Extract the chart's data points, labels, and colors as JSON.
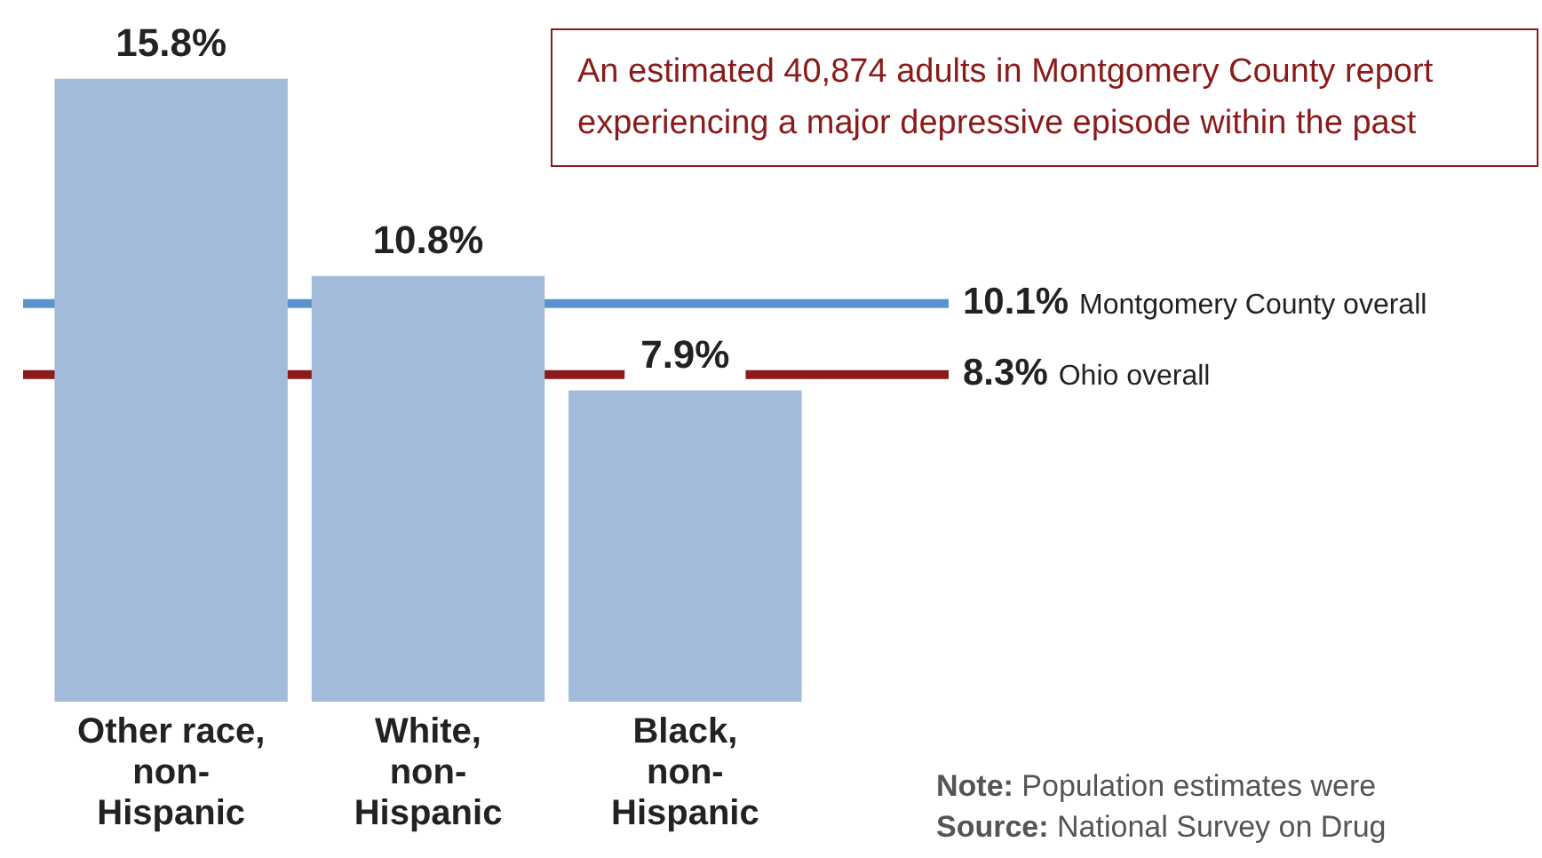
{
  "chart_data": {
    "type": "bar",
    "categories": [
      "Other race, non-Hispanic",
      "White, non-Hispanic",
      "Black, non-Hispanic"
    ],
    "values": [
      15.8,
      10.8,
      7.9
    ],
    "color": "#a3bbdb",
    "value_labels": [
      "15.8%",
      "10.8%",
      "7.9%"
    ],
    "ref_lines": [
      {
        "axis": "y",
        "value": 10.1,
        "label": "10.1% Montgomery County overall",
        "color": "#5b93cf"
      },
      {
        "axis": "y",
        "value": 8.3,
        "label": "8.3% Ohio overall",
        "color": "#8b1a1a"
      }
    ],
    "annotations": [
      "An estimated 40,874 adults in Montgomery County report experiencing a major depressive episode within the past",
      "Note: Population estimates were",
      "Source: National Survey on Drug"
    ],
    "grid": false,
    "tick_labels": "x"
  }
}
